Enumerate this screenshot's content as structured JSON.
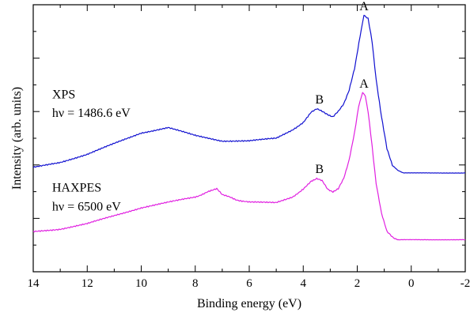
{
  "chart_data": {
    "type": "line",
    "title": "",
    "xlabel": "Binding energy (eV)",
    "ylabel": "Intensity (arb. units)",
    "xlim": [
      14,
      -2
    ],
    "xaxis_reversed": true,
    "ylim": [
      0,
      1
    ],
    "y_tick_labels_shown": false,
    "grid": false,
    "x_ticks": [
      "14",
      "12",
      "10",
      "8",
      "6",
      "4",
      "2",
      "0",
      "-2"
    ],
    "series": [
      {
        "name": "XPS",
        "color": "#1010d0",
        "x": [
          14.0,
          13.0,
          12.0,
          11.0,
          10.0,
          9.0,
          8.0,
          7.0,
          6.0,
          5.0,
          4.4,
          4.0,
          3.7,
          3.5,
          3.3,
          3.1,
          2.9,
          2.7,
          2.5,
          2.3,
          2.1,
          1.9,
          1.75,
          1.6,
          1.45,
          1.3,
          1.1,
          0.9,
          0.7,
          0.5,
          0.3,
          0.0,
          -1.0,
          -2.0
        ],
        "y": [
          0.39,
          0.41,
          0.44,
          0.48,
          0.52,
          0.54,
          0.51,
          0.49,
          0.49,
          0.5,
          0.53,
          0.56,
          0.6,
          0.61,
          0.6,
          0.59,
          0.58,
          0.6,
          0.63,
          0.68,
          0.76,
          0.88,
          0.96,
          0.95,
          0.86,
          0.72,
          0.58,
          0.46,
          0.4,
          0.38,
          0.37,
          0.37,
          0.37,
          0.37
        ]
      },
      {
        "name": "HAXPES",
        "color": "#e020e0",
        "x": [
          14.0,
          13.0,
          12.0,
          11.0,
          10.0,
          9.0,
          8.0,
          7.5,
          7.2,
          7.0,
          6.5,
          6.0,
          5.0,
          4.4,
          4.0,
          3.7,
          3.5,
          3.3,
          3.1,
          2.9,
          2.7,
          2.5,
          2.3,
          2.1,
          1.95,
          1.8,
          1.7,
          1.6,
          1.45,
          1.3,
          1.1,
          0.9,
          0.7,
          0.5,
          0.3,
          0.0,
          -1.0,
          -2.0
        ],
        "y": [
          0.15,
          0.16,
          0.18,
          0.21,
          0.24,
          0.26,
          0.28,
          0.3,
          0.31,
          0.29,
          0.27,
          0.26,
          0.26,
          0.28,
          0.31,
          0.34,
          0.35,
          0.34,
          0.31,
          0.3,
          0.31,
          0.35,
          0.42,
          0.52,
          0.62,
          0.67,
          0.66,
          0.6,
          0.47,
          0.33,
          0.22,
          0.15,
          0.13,
          0.12,
          0.12,
          0.12,
          0.12,
          0.12
        ]
      }
    ],
    "annotations": [
      {
        "text": "XPS",
        "x": 13.3,
        "y": 0.65
      },
      {
        "text": "hν = 1486.6 eV",
        "x": 13.3,
        "y": 0.58
      },
      {
        "text": "HAXPES",
        "x": 13.3,
        "y": 0.3
      },
      {
        "text": "hν = 6500 eV",
        "x": 13.3,
        "y": 0.23
      },
      {
        "text": "B",
        "x": 3.4,
        "y": 0.63
      },
      {
        "text": "A",
        "x": 1.75,
        "y": 0.98
      },
      {
        "text": "B",
        "x": 3.4,
        "y": 0.37
      },
      {
        "text": "A",
        "x": 1.75,
        "y": 0.69
      }
    ]
  }
}
